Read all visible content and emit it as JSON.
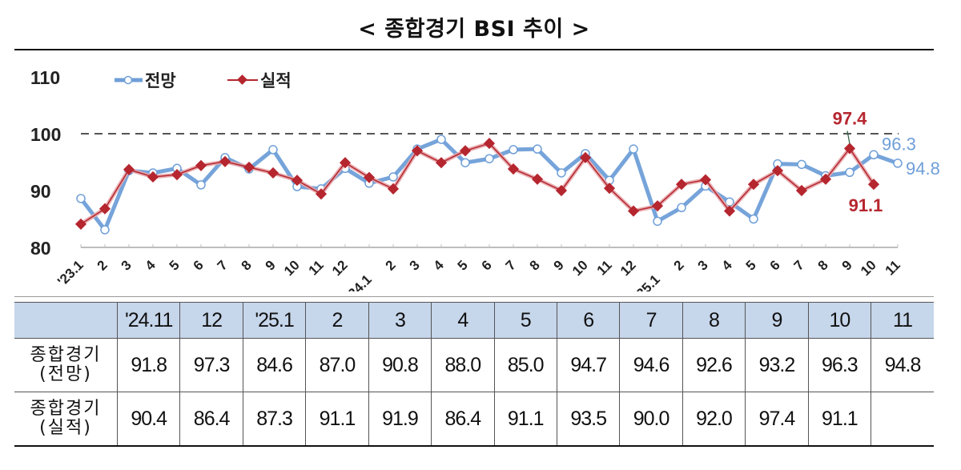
{
  "title": "< 종합경기 BSI 추이 >",
  "chart_data": {
    "type": "line",
    "title": "< 종합경기 BSI 추이 >",
    "xlabel": "",
    "ylabel": "",
    "ylim": [
      80,
      110
    ],
    "yticks": [
      80,
      90,
      100,
      110
    ],
    "reference_line": {
      "y": 100,
      "style": "dashed",
      "color": "#555555"
    },
    "grid": false,
    "legend_position": "top-left",
    "categories": [
      "'23.1",
      "2",
      "3",
      "4",
      "5",
      "6",
      "7",
      "8",
      "9",
      "10",
      "11",
      "12",
      "24.1",
      "2",
      "3",
      "4",
      "5",
      "6",
      "7",
      "8",
      "9",
      "10",
      "11",
      "12",
      "25.1",
      "2",
      "3",
      "4",
      "5",
      "6",
      "7",
      "8",
      "9",
      "10",
      "11"
    ],
    "series": [
      {
        "name": "전망",
        "color": "#6f9fd8",
        "marker": "open-circle",
        "values": [
          88.6,
          83.1,
          93.5,
          93.1,
          93.9,
          91.0,
          95.8,
          93.8,
          97.2,
          90.7,
          90.3,
          93.9,
          91.3,
          92.4,
          97.3,
          99.0,
          94.9,
          95.6,
          97.2,
          97.3,
          93.1,
          96.5,
          91.8,
          97.3,
          84.6,
          87.0,
          90.8,
          88.0,
          85.0,
          94.7,
          94.6,
          92.6,
          93.2,
          96.3,
          94.8
        ]
      },
      {
        "name": "실적",
        "color": "#b5262f",
        "marker": "filled-diamond",
        "values": [
          84.1,
          86.8,
          93.7,
          92.4,
          92.8,
          94.4,
          95.1,
          94.1,
          93.1,
          91.8,
          89.4,
          94.9,
          92.3,
          90.3,
          97.0,
          94.9,
          97.0,
          98.3,
          93.8,
          92.0,
          90.0,
          95.8,
          90.4,
          86.4,
          87.3,
          91.1,
          91.9,
          86.4,
          91.1,
          93.5,
          90.0,
          92.0,
          97.4,
          91.1,
          null
        ]
      }
    ],
    "annotations": [
      {
        "text": "97.4",
        "series": "실적",
        "index": 32,
        "color": "#b5262f"
      },
      {
        "text": "91.1",
        "series": "실적",
        "index": 33,
        "color": "#b5262f"
      },
      {
        "text": "96.3",
        "series": "전망",
        "index": 33,
        "color": "#6f9fd8"
      },
      {
        "text": "94.8",
        "series": "전망",
        "index": 34,
        "color": "#6f9fd8"
      }
    ]
  },
  "legend": {
    "forecast": "전망",
    "actual": "실적"
  },
  "table": {
    "columns": [
      "",
      "'24.11",
      "12",
      "'25.1",
      "2",
      "3",
      "4",
      "5",
      "6",
      "7",
      "8",
      "9",
      "10",
      "11"
    ],
    "rows": [
      {
        "label_line1": "종합경기",
        "label_line2": "(전망)",
        "values": [
          "91.8",
          "97.3",
          "84.6",
          "87.0",
          "90.8",
          "88.0",
          "85.0",
          "94.7",
          "94.6",
          "92.6",
          "93.2",
          "96.3",
          "94.8"
        ]
      },
      {
        "label_line1": "종합경기",
        "label_line2": "(실적)",
        "values": [
          "90.4",
          "86.4",
          "87.3",
          "91.1",
          "91.9",
          "86.4",
          "91.1",
          "93.5",
          "90.0",
          "92.0",
          "97.4",
          "91.1",
          ""
        ]
      }
    ]
  }
}
